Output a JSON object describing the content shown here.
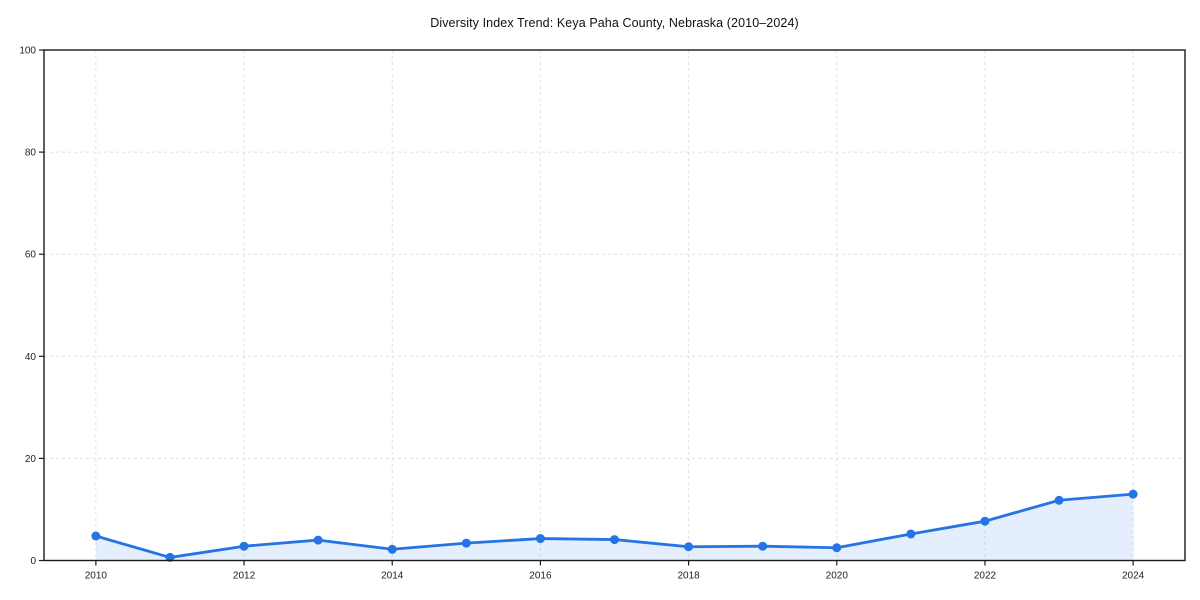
{
  "chart": {
    "title": "Diversity Index Trend: Keya Paha County, Nebraska (2010–2024)"
  },
  "chart_data": {
    "type": "line",
    "title": "Diversity Index Trend: Keya Paha County, Nebraska (2010–2024)",
    "xlabel": "",
    "ylabel": "",
    "x": [
      2010,
      2011,
      2012,
      2013,
      2014,
      2015,
      2016,
      2017,
      2018,
      2019,
      2020,
      2021,
      2022,
      2023,
      2024
    ],
    "series": [
      {
        "name": "Diversity Index",
        "values": [
          4.8,
          0.6,
          2.8,
          4.0,
          2.2,
          3.4,
          4.3,
          4.1,
          2.7,
          2.8,
          2.5,
          5.2,
          7.7,
          11.8,
          13.0
        ]
      }
    ],
    "x_ticks": [
      2010,
      2012,
      2014,
      2016,
      2018,
      2020,
      2022,
      2024
    ],
    "y_ticks": [
      0,
      20,
      40,
      60,
      80,
      100
    ],
    "xlim": [
      2009.3,
      2024.7
    ],
    "ylim": [
      0,
      100
    ],
    "grid": true,
    "grid_style": "dashed",
    "legend": null,
    "marker": "circle",
    "area_fill": true,
    "colors": {
      "line": "#2574e6",
      "marker": "#2574e6",
      "area": "rgba(37, 116, 230, 0.12)",
      "grid": "#e1e1e1",
      "axis": "#1a1a1a",
      "tick_label": "#1f1f1f",
      "title": "#111111"
    }
  }
}
